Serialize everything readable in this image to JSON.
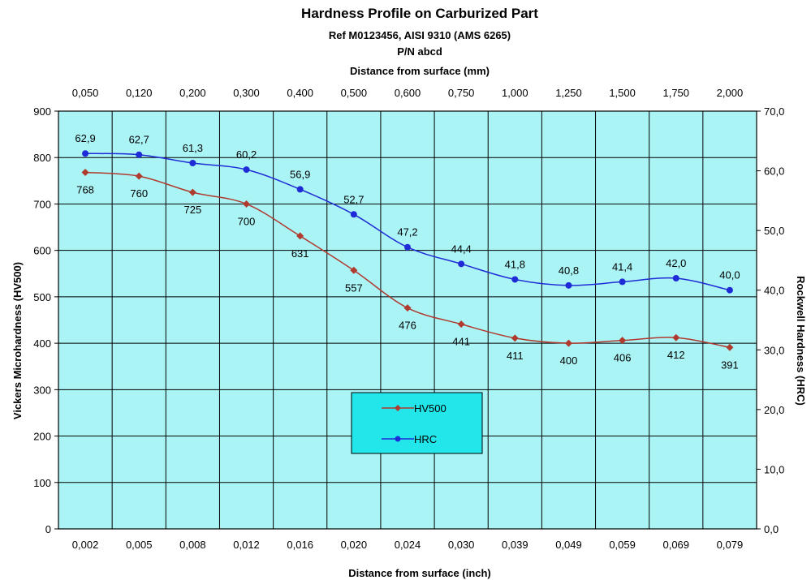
{
  "chart_data": {
    "type": "line",
    "title": "Hardness Profile on Carburized Part",
    "subtitle_lines": [
      "Ref M0123456, AISI 9310 (AMS 6265)",
      "P/N abcd"
    ],
    "x_top_label": "Distance from surface (mm)",
    "x_top_categories": [
      "0,050",
      "0,120",
      "0,200",
      "0,300",
      "0,400",
      "0,500",
      "0,600",
      "0,750",
      "1,000",
      "1,250",
      "1,500",
      "1,750",
      "2,000"
    ],
    "xlabel": "Distance from surface (inch)",
    "categories": [
      "0,002",
      "0,005",
      "0,008",
      "0,012",
      "0,016",
      "0,020",
      "0,024",
      "0,030",
      "0,039",
      "0,049",
      "0,059",
      "0,069",
      "0,079"
    ],
    "ylabel": "Vickers Microhardness (HV500)",
    "ylim": [
      0,
      900
    ],
    "y_ticks": [
      "0",
      "100",
      "200",
      "300",
      "400",
      "500",
      "600",
      "700",
      "800",
      "900"
    ],
    "y2label": "Rockwell Hardness (HRC)",
    "y2lim": [
      0,
      70
    ],
    "y2_ticks": [
      "0,0",
      "10,0",
      "20,0",
      "30,0",
      "40,0",
      "50,0",
      "60,0",
      "70,0"
    ],
    "grid": true,
    "legend_position": "lower-center",
    "series": [
      {
        "name": "HV500",
        "axis": "left",
        "color": "#b03a2e",
        "values": [
          768,
          760,
          725,
          700,
          631,
          557,
          476,
          441,
          411,
          400,
          406,
          412,
          391
        ],
        "labels": [
          "768",
          "760",
          "725",
          "700",
          "631",
          "557",
          "476",
          "441",
          "411",
          "400",
          "406",
          "412",
          "391"
        ]
      },
      {
        "name": "HRC",
        "axis": "right",
        "color": "#1f2bd6",
        "values": [
          62.9,
          62.7,
          61.3,
          60.2,
          56.9,
          52.7,
          47.2,
          44.4,
          41.8,
          40.8,
          41.4,
          42.0,
          40.0
        ],
        "labels": [
          "62,9",
          "62,7",
          "61,3",
          "60,2",
          "56,9",
          "52,7",
          "47,2",
          "44,4",
          "41,8",
          "40,8",
          "41,4",
          "42,0",
          "40,0"
        ]
      }
    ],
    "plot_background": "#aaf4f6",
    "legend_background": "#22e6ea"
  }
}
